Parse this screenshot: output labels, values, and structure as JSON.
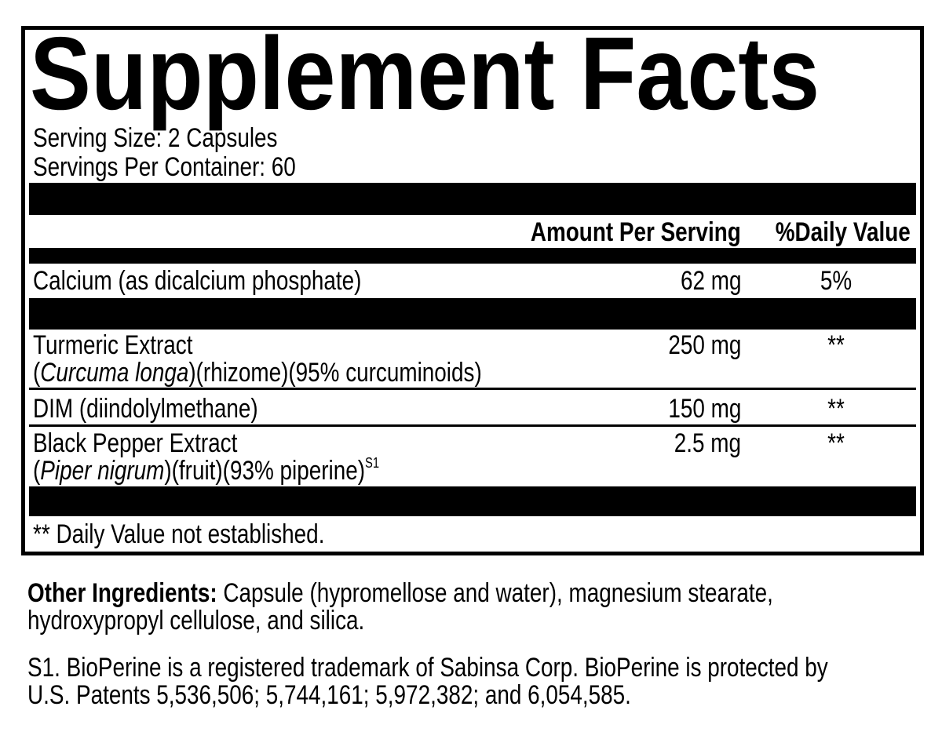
{
  "title": "Supplement Facts",
  "serving_size": "Serving Size: 2 Capsules",
  "servings_per_container": "Servings Per Container: 60",
  "header": {
    "amount": "Amount Per Serving",
    "daily_value": "%Daily Value"
  },
  "rows": [
    {
      "name": "Calcium (as dicalcium phosphate)",
      "amount": "62 mg",
      "dv": "5%"
    },
    {
      "name": "Turmeric Extract",
      "detail_open": "(",
      "detail_italic": "Curcuma longa",
      "detail_rest": ")(rhizome)(95% curcuminoids)",
      "amount": "250 mg",
      "dv": "**"
    },
    {
      "name": "DIM (diindolylmethane)",
      "amount": "150 mg",
      "dv": "**"
    },
    {
      "name": "Black Pepper Extract",
      "detail_open": "(",
      "detail_italic": "Piper nigrum",
      "detail_rest": ")(fruit)(93% piperine)",
      "detail_sup": "S1",
      "amount": "2.5 mg",
      "dv": "**"
    }
  ],
  "footnote": "** Daily Value not established.",
  "other_ingredients": {
    "label": "Other Ingredients:",
    "line1": " Capsule (hypromellose and water), magnesium stearate,",
    "line2": "hydroxypropyl cellulose, and silica."
  },
  "trademark": {
    "line1": "S1. BioPerine is a registered trademark of Sabinsa Corp. BioPerine is protected by",
    "line2": "U.S. Patents 5,536,506; 5,744,161; 5,972,382; and 6,054,585."
  }
}
